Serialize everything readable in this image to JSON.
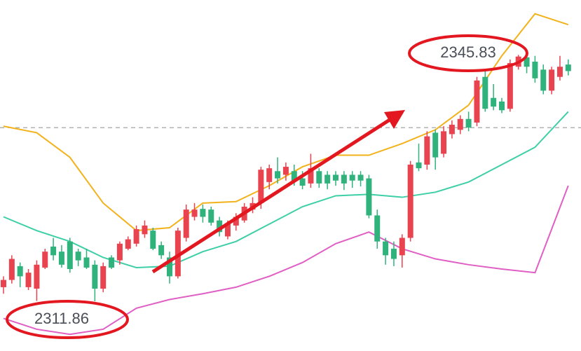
{
  "chart_data": {
    "type": "candlestick",
    "ylim": [
      2305.0,
      2353.4
    ],
    "up_color": "#e8434f",
    "down_color": "#2fb27c",
    "reference_line": 2335.8,
    "open": [
      2313.8,
      2314.8,
      2316.7,
      2313.8,
      2313.6,
      2316.5,
      2319.4,
      2318.7,
      2320.1,
      2318.7,
      2317.9,
      2316.9,
      2313.6,
      2317.9,
      2317.5,
      2319.1,
      2319.8,
      2321.1,
      2321.6,
      2319.6,
      2317.9,
      2315.3,
      2320.6,
      2323.5,
      2324.6,
      2324.5,
      2323.0,
      2320.8,
      2322.3,
      2323.0,
      2324.5,
      2325.4,
      2328.3,
      2329.8,
      2329.3,
      2329.8,
      2328.8,
      2328.1,
      2329.8,
      2329.3,
      2329.3,
      2329.3,
      2329.3,
      2329.3,
      2328.8,
      2323.7,
      2320.1,
      2319.1,
      2318.2,
      2320.6,
      2331.0,
      2330.7,
      2335.1,
      2332.2,
      2334.9,
      2335.5,
      2337.0,
      2336.5,
      2342.8,
      2339.9,
      2339.4,
      2338.4,
      2344.2,
      2345.5,
      2344.9,
      2343.8,
      2340.9,
      2342.8,
      2344.5
    ],
    "high": [
      2315.3,
      2318.2,
      2317.2,
      2316.3,
      2317.5,
      2319.1,
      2320.6,
      2319.6,
      2320.6,
      2319.1,
      2319.1,
      2317.5,
      2317.2,
      2318.2,
      2320.1,
      2320.8,
      2322.3,
      2323.0,
      2322.0,
      2320.1,
      2318.7,
      2322.0,
      2325.2,
      2325.4,
      2325.2,
      2324.9,
      2323.5,
      2323.0,
      2324.0,
      2325.4,
      2326.2,
      2330.4,
      2330.7,
      2331.7,
      2331.0,
      2330.7,
      2329.8,
      2332.2,
      2330.2,
      2329.8,
      2329.8,
      2329.8,
      2329.8,
      2329.8,
      2329.3,
      2324.5,
      2320.6,
      2320.1,
      2321.1,
      2331.2,
      2333.6,
      2335.3,
      2335.5,
      2336.0,
      2336.8,
      2337.5,
      2338.0,
      2342.8,
      2343.8,
      2341.8,
      2339.9,
      2345.2,
      2345.83,
      2345.7,
      2345.7,
      2344.5,
      2344.2,
      2345.7,
      2345.2
    ],
    "low": [
      2312.9,
      2314.3,
      2313.8,
      2313.4,
      2311.9,
      2316.3,
      2317.5,
      2316.5,
      2315.8,
      2316.7,
      2316.3,
      2311.86,
      2313.1,
      2316.3,
      2316.9,
      2318.9,
      2319.4,
      2320.6,
      2318.9,
      2317.7,
      2314.3,
      2315.0,
      2320.1,
      2323.0,
      2322.7,
      2322.3,
      2320.8,
      2320.4,
      2321.6,
      2322.7,
      2324.0,
      2324.6,
      2327.3,
      2328.1,
      2328.5,
      2327.8,
      2327.3,
      2327.5,
      2327.5,
      2327.3,
      2327.8,
      2327.2,
      2327.5,
      2327.7,
      2323.3,
      2319.1,
      2316.9,
      2316.7,
      2316.5,
      2320.1,
      2329.8,
      2330.0,
      2330.0,
      2331.7,
      2334.3,
      2334.9,
      2335.3,
      2336.0,
      2338.0,
      2338.2,
      2337.8,
      2338.0,
      2343.8,
      2343.3,
      2342.0,
      2340.4,
      2340.4,
      2342.3,
      2343.0
    ],
    "close": [
      2314.8,
      2317.7,
      2315.3,
      2315.8,
      2316.9,
      2318.7,
      2318.2,
      2316.9,
      2316.3,
      2317.5,
      2316.5,
      2313.6,
      2316.7,
      2316.5,
      2319.8,
      2320.4,
      2321.8,
      2322.3,
      2319.1,
      2318.2,
      2315.3,
      2321.6,
      2324.5,
      2324.5,
      2323.5,
      2322.7,
      2321.4,
      2322.5,
      2323.5,
      2324.9,
      2325.4,
      2330.0,
      2330.2,
      2328.8,
      2330.4,
      2328.5,
      2327.8,
      2330.2,
      2328.1,
      2328.1,
      2328.5,
      2328.1,
      2328.5,
      2328.5,
      2323.7,
      2320.1,
      2318.2,
      2317.7,
      2320.6,
      2330.7,
      2330.2,
      2334.6,
      2331.7,
      2335.3,
      2336.2,
      2337.0,
      2335.8,
      2342.3,
      2338.4,
      2338.7,
      2338.2,
      2344.7,
      2345.6,
      2344.2,
      2342.6,
      2340.9,
      2343.8,
      2344.2,
      2343.6
    ],
    "bands": {
      "x": [
        0,
        4,
        8,
        12,
        16,
        20,
        24,
        28,
        32,
        36,
        40,
        44,
        48,
        52,
        56,
        60,
        64,
        68
      ],
      "lines": [
        {
          "color": "#f2b21b",
          "values": [
            2336.0,
            2335.1,
            2331.7,
            2325.4,
            2321.6,
            2322.0,
            2325.4,
            2325.6,
            2327.8,
            2330.4,
            2332.0,
            2332.0,
            2333.6,
            2335.5,
            2338.9,
            2345.7,
            2351.5,
            2350.0
          ]
        },
        {
          "color": "#3dcfa6",
          "values": [
            2323.5,
            2321.6,
            2320.1,
            2317.9,
            2316.5,
            2316.7,
            2318.7,
            2320.1,
            2322.5,
            2324.9,
            2326.4,
            2326.6,
            2326.2,
            2326.9,
            2328.3,
            2330.7,
            2333.1,
            2338.0
          ]
        },
        {
          "color": "#e05fc4",
          "values": [
            2309.5,
            2308.0,
            2307.3,
            2308.0,
            2310.9,
            2312.1,
            2312.9,
            2313.8,
            2315.3,
            2317.2,
            2319.8,
            2321.4,
            2319.1,
            2317.7,
            2316.9,
            2316.3,
            2315.8,
            2327.8
          ]
        }
      ]
    },
    "annotations": [
      "2345.83",
      "2311.86"
    ]
  }
}
